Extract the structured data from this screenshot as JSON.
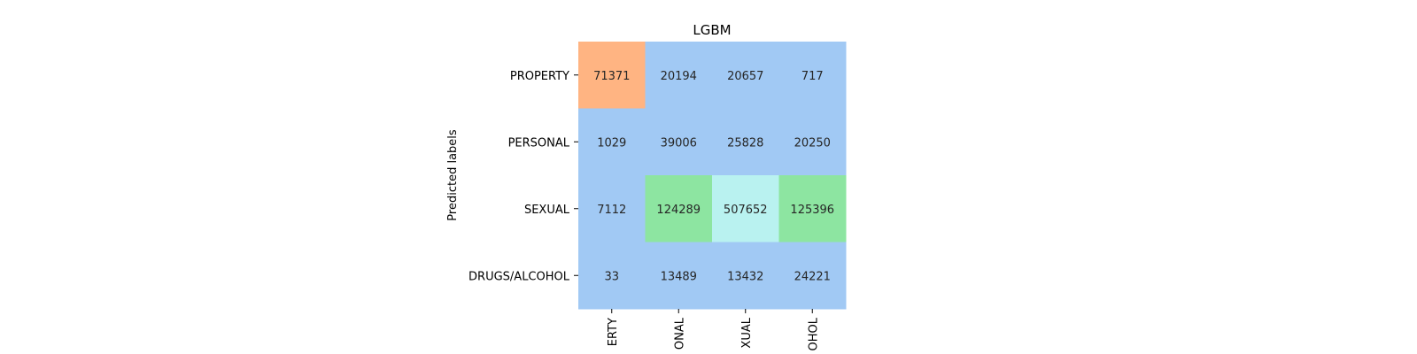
{
  "chart_data": {
    "type": "heatmap",
    "title": "LGBM",
    "ylabel": "Predicted labels",
    "xlabel": "",
    "row_labels": [
      "PROPERTY",
      "PERSONAL",
      "SEXUAL",
      "DRUGS/ALCOHOL"
    ],
    "col_labels": [
      "ERTY",
      "ONAL",
      "XUAL",
      "OHOL"
    ],
    "values": [
      [
        71371,
        20194,
        20657,
        717
      ],
      [
        1029,
        39006,
        25828,
        20250
      ],
      [
        7112,
        124289,
        507652,
        125396
      ],
      [
        33,
        13489,
        13432,
        24221
      ]
    ],
    "colorbar": false,
    "color_bins": [
      {
        "min": 0,
        "max": 60000,
        "color": "#a1c9f4"
      },
      {
        "min": 60000,
        "max": 100000,
        "color": "#ffb482"
      },
      {
        "min": 100000,
        "max": 300000,
        "color": "#8de5a1"
      },
      {
        "min": 300000,
        "max": 1000000,
        "color": "#b9f2f0"
      }
    ]
  }
}
